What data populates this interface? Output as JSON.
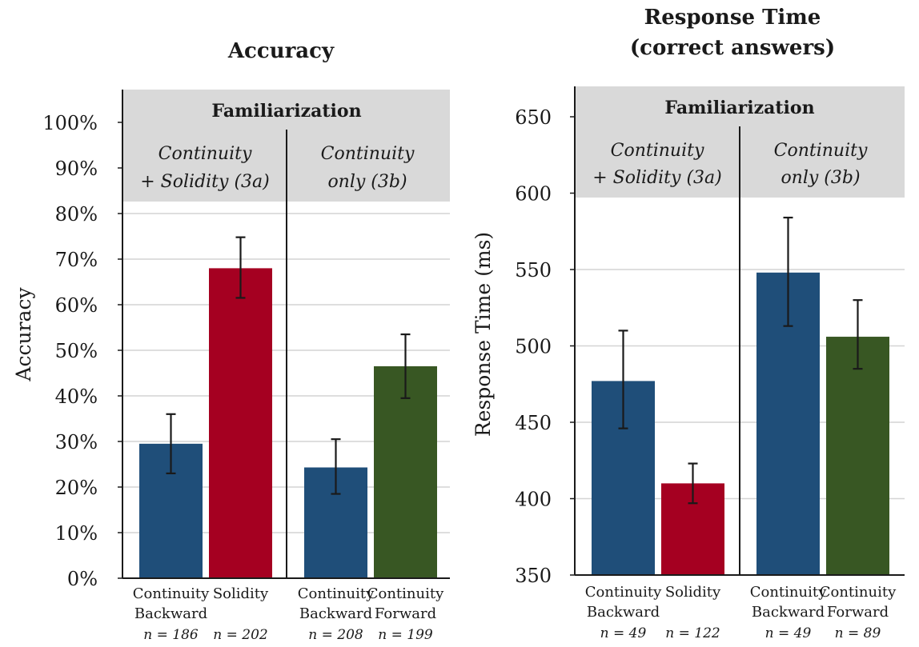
{
  "colors": {
    "continuity_backward": "#1f4e79",
    "solidity": "#a50021",
    "continuity_forward": "#385723",
    "band": "#d9d9d9",
    "grid": "#d4d4d4",
    "error_bar": "#1a1a1a"
  },
  "chart_data": [
    {
      "type": "bar",
      "title": "Accuracy",
      "ylabel": "Accuracy",
      "ylim": [
        0,
        100
      ],
      "yticks": [
        0,
        10,
        20,
        30,
        40,
        50,
        60,
        70,
        80,
        90,
        100
      ],
      "ytick_labels": [
        "0%",
        "10%",
        "20%",
        "30%",
        "40%",
        "50%",
        "60%",
        "70%",
        "80%",
        "90%",
        "100%"
      ],
      "grid": true,
      "band_title": "Familiarization",
      "groups": [
        {
          "label_line1": "Continuity",
          "label_line2": "+ Solidity (3a)"
        },
        {
          "label_line1": "Continuity",
          "label_line2": "only (3b)"
        }
      ],
      "bars": [
        {
          "label_line1": "Continuity",
          "label_line2": "Backward",
          "n": "n = 186",
          "value": 29.5,
          "err_low": 23.0,
          "err_high": 36.0,
          "color": "#1f4e79",
          "group": 0
        },
        {
          "label_line1": "Solidity",
          "label_line2": "",
          "n": "n = 202",
          "value": 68.0,
          "err_low": 61.5,
          "err_high": 74.8,
          "color": "#a50021",
          "group": 0
        },
        {
          "label_line1": "Continuity",
          "label_line2": "Backward",
          "n": "n = 208",
          "value": 24.3,
          "err_low": 18.5,
          "err_high": 30.5,
          "color": "#1f4e79",
          "group": 1
        },
        {
          "label_line1": "Continuity",
          "label_line2": "Forward",
          "n": "n = 199",
          "value": 46.5,
          "err_low": 39.5,
          "err_high": 53.5,
          "color": "#385723",
          "group": 1
        }
      ]
    },
    {
      "type": "bar",
      "title_line1": "Response Time",
      "title_line2": "(correct answers)",
      "ylabel": "Response Time (ms)",
      "ylim": [
        350,
        650
      ],
      "yticks": [
        350,
        400,
        450,
        500,
        550,
        600,
        650
      ],
      "ytick_labels": [
        "350",
        "400",
        "450",
        "500",
        "550",
        "600",
        "650"
      ],
      "grid": true,
      "band_title": "Familiarization",
      "groups": [
        {
          "label_line1": "Continuity",
          "label_line2": "+ Solidity (3a)"
        },
        {
          "label_line1": "Continuity",
          "label_line2": "only (3b)"
        }
      ],
      "bars": [
        {
          "label_line1": "Continuity",
          "label_line2": "Backward",
          "n": "n = 49",
          "value": 477,
          "err_low": 446,
          "err_high": 510,
          "color": "#1f4e79",
          "group": 0
        },
        {
          "label_line1": "Solidity",
          "label_line2": "",
          "n": "n = 122",
          "value": 410,
          "err_low": 397,
          "err_high": 423,
          "color": "#a50021",
          "group": 0
        },
        {
          "label_line1": "Continuity",
          "label_line2": "Backward",
          "n": "n = 49",
          "value": 548,
          "err_low": 513,
          "err_high": 584,
          "color": "#1f4e79",
          "group": 1
        },
        {
          "label_line1": "Continuity",
          "label_line2": "Forward",
          "n": "n = 89",
          "value": 506,
          "err_low": 485,
          "err_high": 530,
          "color": "#385723",
          "group": 1
        }
      ]
    }
  ]
}
